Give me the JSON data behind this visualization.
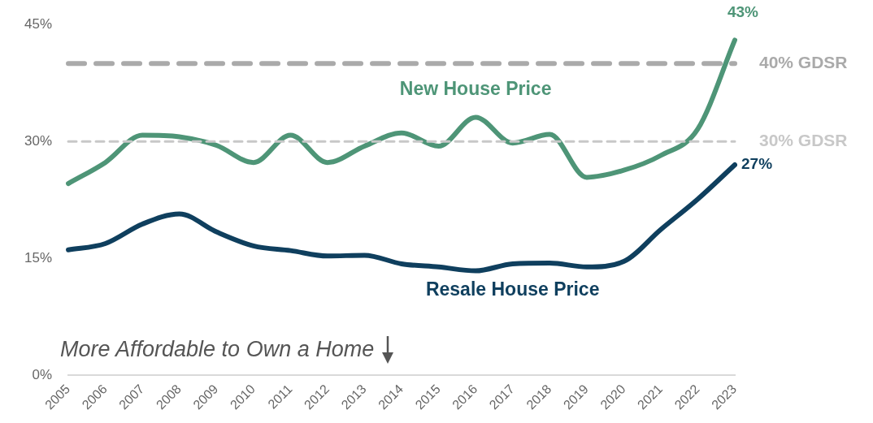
{
  "chart_data": {
    "type": "line",
    "categories": [
      "2005",
      "2006",
      "2007",
      "2008",
      "2009",
      "2010",
      "2011",
      "2012",
      "2013",
      "2014",
      "2015",
      "2016",
      "2017",
      "2018",
      "2019",
      "2020",
      "2021",
      "2022",
      "2023"
    ],
    "series": [
      {
        "name": "New House Price",
        "color": "#4e9577",
        "values": [
          24.6,
          27.3,
          30.8,
          30.6,
          29.5,
          27.3,
          30.8,
          27.3,
          29.4,
          31.1,
          29.4,
          33.1,
          29.8,
          30.9,
          25.4,
          26.3,
          28.2,
          31.6,
          43
        ],
        "value_labels": [
          null,
          null,
          null,
          null,
          null,
          null,
          null,
          null,
          null,
          null,
          null,
          null,
          null,
          null,
          null,
          null,
          null,
          null,
          "43%"
        ]
      },
      {
        "name": "Resale House Price",
        "color": "#0f3f5e",
        "values": [
          16.1,
          16.9,
          19.4,
          20.7,
          18.4,
          16.6,
          16.0,
          15.3,
          15.4,
          14.3,
          13.9,
          13.4,
          14.3,
          14.4,
          13.9,
          14.6,
          18.7,
          22.6,
          27
        ],
        "value_labels": [
          null,
          null,
          null,
          null,
          null,
          null,
          null,
          null,
          null,
          null,
          null,
          null,
          null,
          null,
          null,
          null,
          null,
          null,
          "27%"
        ]
      }
    ],
    "ylim": [
      0,
      45
    ],
    "yticks": [
      {
        "value": 0,
        "label": "0%"
      },
      {
        "value": 15,
        "label": "15%"
      },
      {
        "value": 30,
        "label": "30%"
      },
      {
        "value": 45,
        "label": "45%"
      }
    ],
    "grid": false,
    "legend": false,
    "marker": "none",
    "line_style": "solid",
    "ref_lines": [
      {
        "axis": "y",
        "value": 40,
        "label": "40% GDSR",
        "color": "#aaaaaa",
        "line_style": "dashed"
      },
      {
        "axis": "y",
        "value": 30,
        "label": "30% GDSR",
        "color": "#c8c8c8",
        "line_style": "dashed"
      }
    ],
    "annotations": [
      "More Affordable to Own a Home"
    ]
  }
}
